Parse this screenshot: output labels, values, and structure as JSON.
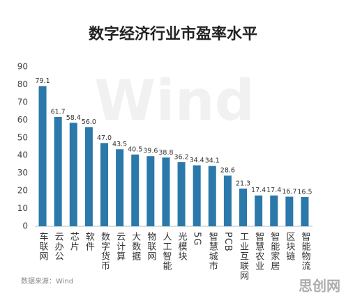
{
  "chart_data": {
    "type": "bar",
    "title": "数字经济行业市盈率水平",
    "categories": [
      "车联网",
      "云办公",
      "芯片",
      "软件",
      "数字货币",
      "云计算",
      "大数据",
      "物联网",
      "人工智能",
      "光模块",
      "5G",
      "智慧城市",
      "PCB",
      "工业互联网",
      "智慧农业",
      "智能家居",
      "区块链",
      "智能物流"
    ],
    "values": [
      79.1,
      61.7,
      58.4,
      56.0,
      47.0,
      43.5,
      40.5,
      39.6,
      38.8,
      36.2,
      34.4,
      34.1,
      28.6,
      21.3,
      17.4,
      17.4,
      16.7,
      16.5
    ],
    "value_labels": [
      "79.1",
      "61.7",
      "58.4",
      "56.0",
      "47.0",
      "43.5",
      "40.5",
      "39.6",
      "38.8",
      "36.2",
      "34.4",
      "34.1",
      "28.6",
      "21.3",
      "17.4",
      "17.4",
      "16.7",
      "16.5"
    ],
    "color": "#2b78aa",
    "ylim": [
      0,
      90
    ],
    "yticks": [
      0,
      10,
      20,
      30,
      40,
      50,
      60,
      70,
      80,
      90
    ],
    "grid": false,
    "note": "数据来源：Wind",
    "watermark": "Wind",
    "corner_mark": "思创网"
  }
}
